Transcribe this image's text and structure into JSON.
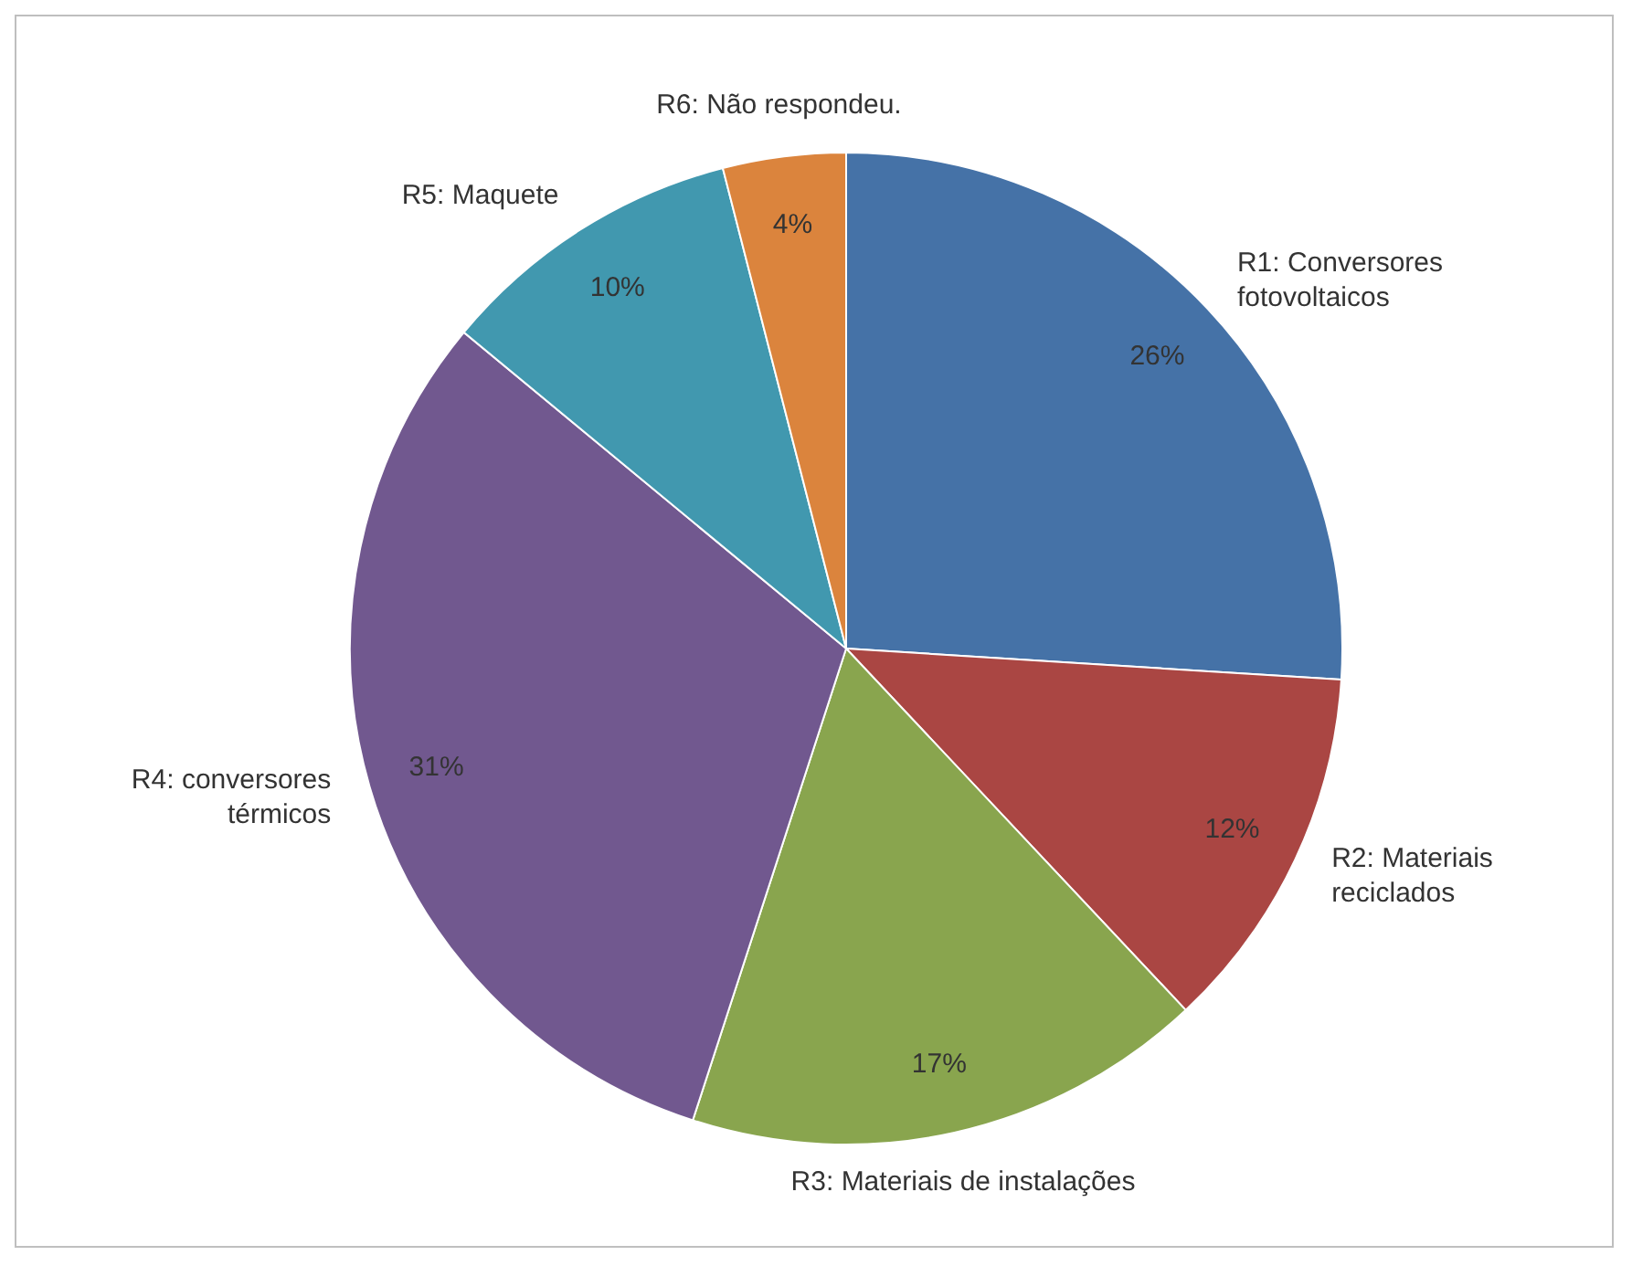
{
  "chart_data": {
    "type": "pie",
    "categories": [
      "R1: Conversores fotovoltaicos",
      "R2: Materiais reciclados",
      "R3: Materiais de instalações",
      "R4: conversores térmicos",
      "R5: Maquete",
      "R6: Não respondeu."
    ],
    "values": [
      26,
      12,
      17,
      31,
      10,
      4
    ],
    "colors": [
      "#4572a7",
      "#aa4643",
      "#89a54e",
      "#71588f",
      "#4198af",
      "#db843d"
    ],
    "value_labels": [
      "26%",
      "12%",
      "17%",
      "31%",
      "10%",
      "4%"
    ],
    "legend": false
  }
}
